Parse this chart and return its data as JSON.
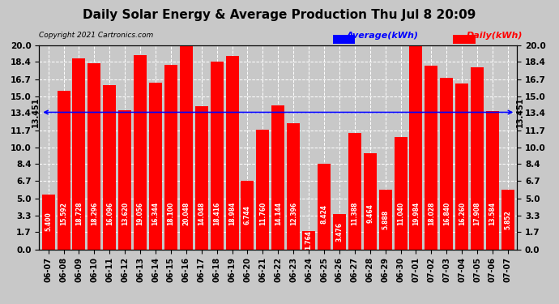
{
  "title": "Daily Solar Energy & Average Production Thu Jul 8 20:09",
  "copyright": "Copyright 2021 Cartronics.com",
  "categories": [
    "06-07",
    "06-08",
    "06-09",
    "06-10",
    "06-11",
    "06-12",
    "06-13",
    "06-14",
    "06-15",
    "06-16",
    "06-17",
    "06-18",
    "06-19",
    "06-20",
    "06-21",
    "06-22",
    "06-23",
    "06-24",
    "06-25",
    "06-26",
    "06-27",
    "06-28",
    "06-29",
    "06-30",
    "07-01",
    "07-02",
    "07-03",
    "07-04",
    "07-05",
    "07-06",
    "07-07"
  ],
  "values": [
    5.4,
    15.592,
    18.728,
    18.296,
    16.096,
    13.62,
    19.056,
    16.344,
    18.1,
    20.048,
    14.048,
    18.416,
    18.984,
    6.744,
    11.76,
    14.144,
    12.396,
    1.764,
    8.424,
    3.476,
    11.388,
    9.464,
    5.888,
    11.04,
    19.984,
    18.028,
    16.84,
    16.26,
    17.908,
    13.584,
    5.852
  ],
  "average": 13.451,
  "bar_color": "#ff0000",
  "average_color": "#0000ff",
  "label_color": "#ffffff",
  "yticks": [
    0.0,
    1.7,
    3.3,
    5.0,
    6.7,
    8.4,
    10.0,
    11.7,
    13.4,
    15.0,
    16.7,
    18.4,
    20.0
  ],
  "ylim": [
    0.0,
    20.0
  ],
  "legend_avg_label": "Average(kWh)",
  "legend_daily_label": "Daily(kWh)",
  "avg_label": "13.451",
  "background_color": "#c8c8c8",
  "plot_bg_color": "#c8c8c8",
  "grid_color": "#ffffff",
  "title_fontsize": 11,
  "copyright_fontsize": 6.5,
  "bar_label_fontsize": 5.5,
  "tick_fontsize": 7.5,
  "legend_fontsize": 8
}
